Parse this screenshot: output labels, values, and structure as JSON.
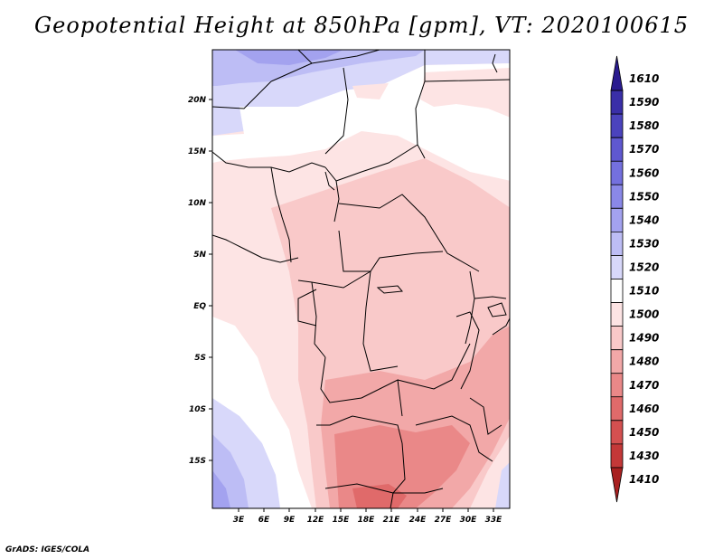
{
  "title": "Geopotential Height at 850hPa [gpm], VT: 2020100615",
  "credit": "GrADS: IGES/COLA",
  "lat_labels": [
    "20N",
    "15N",
    "10N",
    "5N",
    "EQ",
    "5S",
    "10S",
    "15S"
  ],
  "lon_labels": [
    "3E",
    "6E",
    "9E",
    "12E",
    "15E",
    "18E",
    "21E",
    "24E",
    "27E",
    "30E",
    "33E"
  ],
  "colorbar": {
    "levels": [
      "1610",
      "1590",
      "1580",
      "1570",
      "1560",
      "1550",
      "1540",
      "1530",
      "1520",
      "1510",
      "1500",
      "1490",
      "1480",
      "1470",
      "1460",
      "1450",
      "1430",
      "1410"
    ],
    "colors": [
      "#2a1b8f",
      "#3a2fa8",
      "#4b43bd",
      "#5f58d0",
      "#7470de",
      "#8a88e8",
      "#a3a2ef",
      "#bdbdf5",
      "#d8d8fa",
      "#ffffff",
      "#fde4e4",
      "#f9c9c9",
      "#f2a8a8",
      "#ea8888",
      "#e06a6a",
      "#d45050",
      "#c43838",
      "#a82020"
    ]
  }
}
